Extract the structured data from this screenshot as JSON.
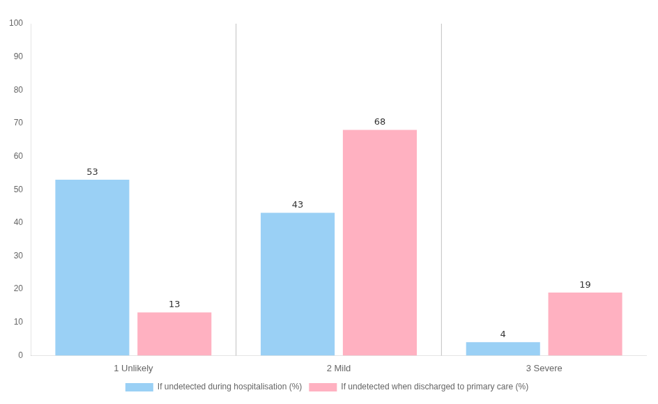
{
  "chart_data": {
    "type": "bar",
    "categories": [
      "1 Unlikely",
      "2 Mild",
      "3 Severe"
    ],
    "series": [
      {
        "name": "If undetected during hospitalisation (%)",
        "values": [
          53,
          43,
          4
        ]
      },
      {
        "name": "If undetected when discharged to primary care (%)",
        "values": [
          13,
          68,
          19
        ]
      }
    ],
    "ylim": [
      0,
      100
    ],
    "yticks": [
      0,
      10,
      20,
      30,
      40,
      50,
      60,
      70,
      80,
      90,
      100
    ],
    "data_labels": true,
    "legend": "bottom",
    "grid": false
  }
}
